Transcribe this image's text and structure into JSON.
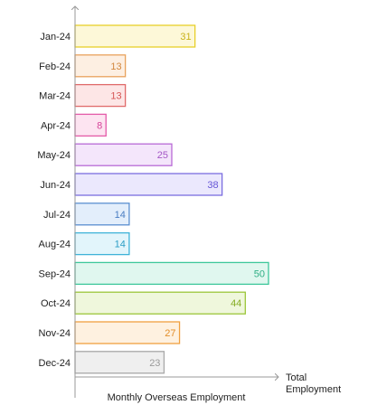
{
  "chart_data": {
    "type": "bar",
    "orientation": "horizontal",
    "categories": [
      "Jan-24",
      "Feb-24",
      "Mar-24",
      "Apr-24",
      "May-24",
      "Jun-24",
      "Jul-24",
      "Aug-24",
      "Sep-24",
      "Oct-24",
      "Nov-24",
      "Dec-24"
    ],
    "values": [
      31,
      13,
      13,
      8,
      25,
      38,
      14,
      14,
      50,
      44,
      27,
      23
    ],
    "colors": {
      "stroke": [
        "#e8cf2a",
        "#e8a25c",
        "#e06a6a",
        "#e45aa8",
        "#b86ad6",
        "#7b6ee0",
        "#5b8fd0",
        "#3fb3d8",
        "#3cc79a",
        "#9cc63a",
        "#f0a040",
        "#a8a8a8"
      ],
      "fill": [
        "#fdf8d8",
        "#fdefe2",
        "#fde6e6",
        "#fde4f1",
        "#f4e6fb",
        "#ebe8fd",
        "#e3eefb",
        "#e2f5fb",
        "#e0f7ef",
        "#eff7dc",
        "#fef1e0",
        "#efefef"
      ]
    },
    "value_label_colors": [
      "#c9b21a",
      "#d2873e",
      "#d65656",
      "#d6449a",
      "#a457c6",
      "#6656d6",
      "#4a7dc2",
      "#2c9ec6",
      "#2fae85",
      "#86ad24",
      "#e38e2a",
      "#9a9a9a"
    ],
    "xlabel": "Monthly Overseas Employment",
    "x_axis_end_label": [
      "Total",
      "Employment"
    ],
    "xlim": [
      0,
      50
    ],
    "grid": false,
    "legend": "none"
  }
}
